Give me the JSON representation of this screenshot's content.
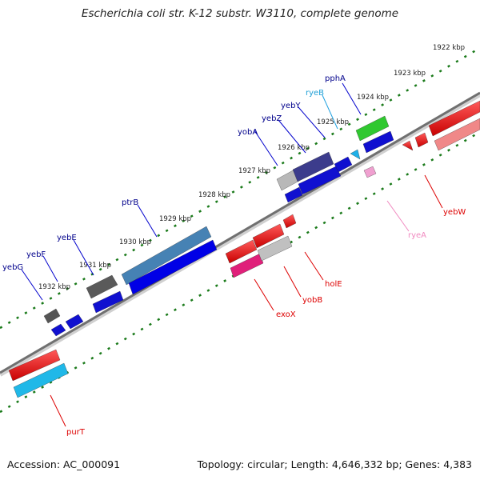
{
  "title": "Escherichia coli str. K-12 substr. W3110, complete genome",
  "footer": {
    "accession": "Accession: AC_000091",
    "stats": "Topology: circular; Length: 4,646,332 bp; Genes: 4,383"
  },
  "ticks": [
    "1922 kbp",
    "1923 kbp",
    "1924 kbp",
    "1925 kbp",
    "1926 kbp",
    "1927 kbp",
    "1928 kbp",
    "1929 kbp",
    "1930 kbp",
    "1931 kbp",
    "1932 kbp"
  ],
  "genes_forward": [
    {
      "name": "yebG",
      "color": "#00008b"
    },
    {
      "name": "yebF",
      "color": "#00008b"
    },
    {
      "name": "yebE",
      "color": "#00008b"
    },
    {
      "name": "ptrB",
      "color": "#00008b"
    },
    {
      "name": "yobA",
      "color": "#00008b"
    },
    {
      "name": "yebZ",
      "color": "#00008b"
    },
    {
      "name": "yebY",
      "color": "#00008b"
    },
    {
      "name": "ryeB",
      "color": "#1e9fd6"
    },
    {
      "name": "pphA",
      "color": "#00008b"
    }
  ],
  "genes_reverse": [
    {
      "name": "purT",
      "color": "#dd0000"
    },
    {
      "name": "exoX",
      "color": "#dd0000"
    },
    {
      "name": "yobB",
      "color": "#dd0000"
    },
    {
      "name": "holE",
      "color": "#dd0000"
    },
    {
      "name": "ryeA",
      "color": "#e890c0"
    },
    {
      "name": "yebW",
      "color": "#dd0000"
    }
  ]
}
